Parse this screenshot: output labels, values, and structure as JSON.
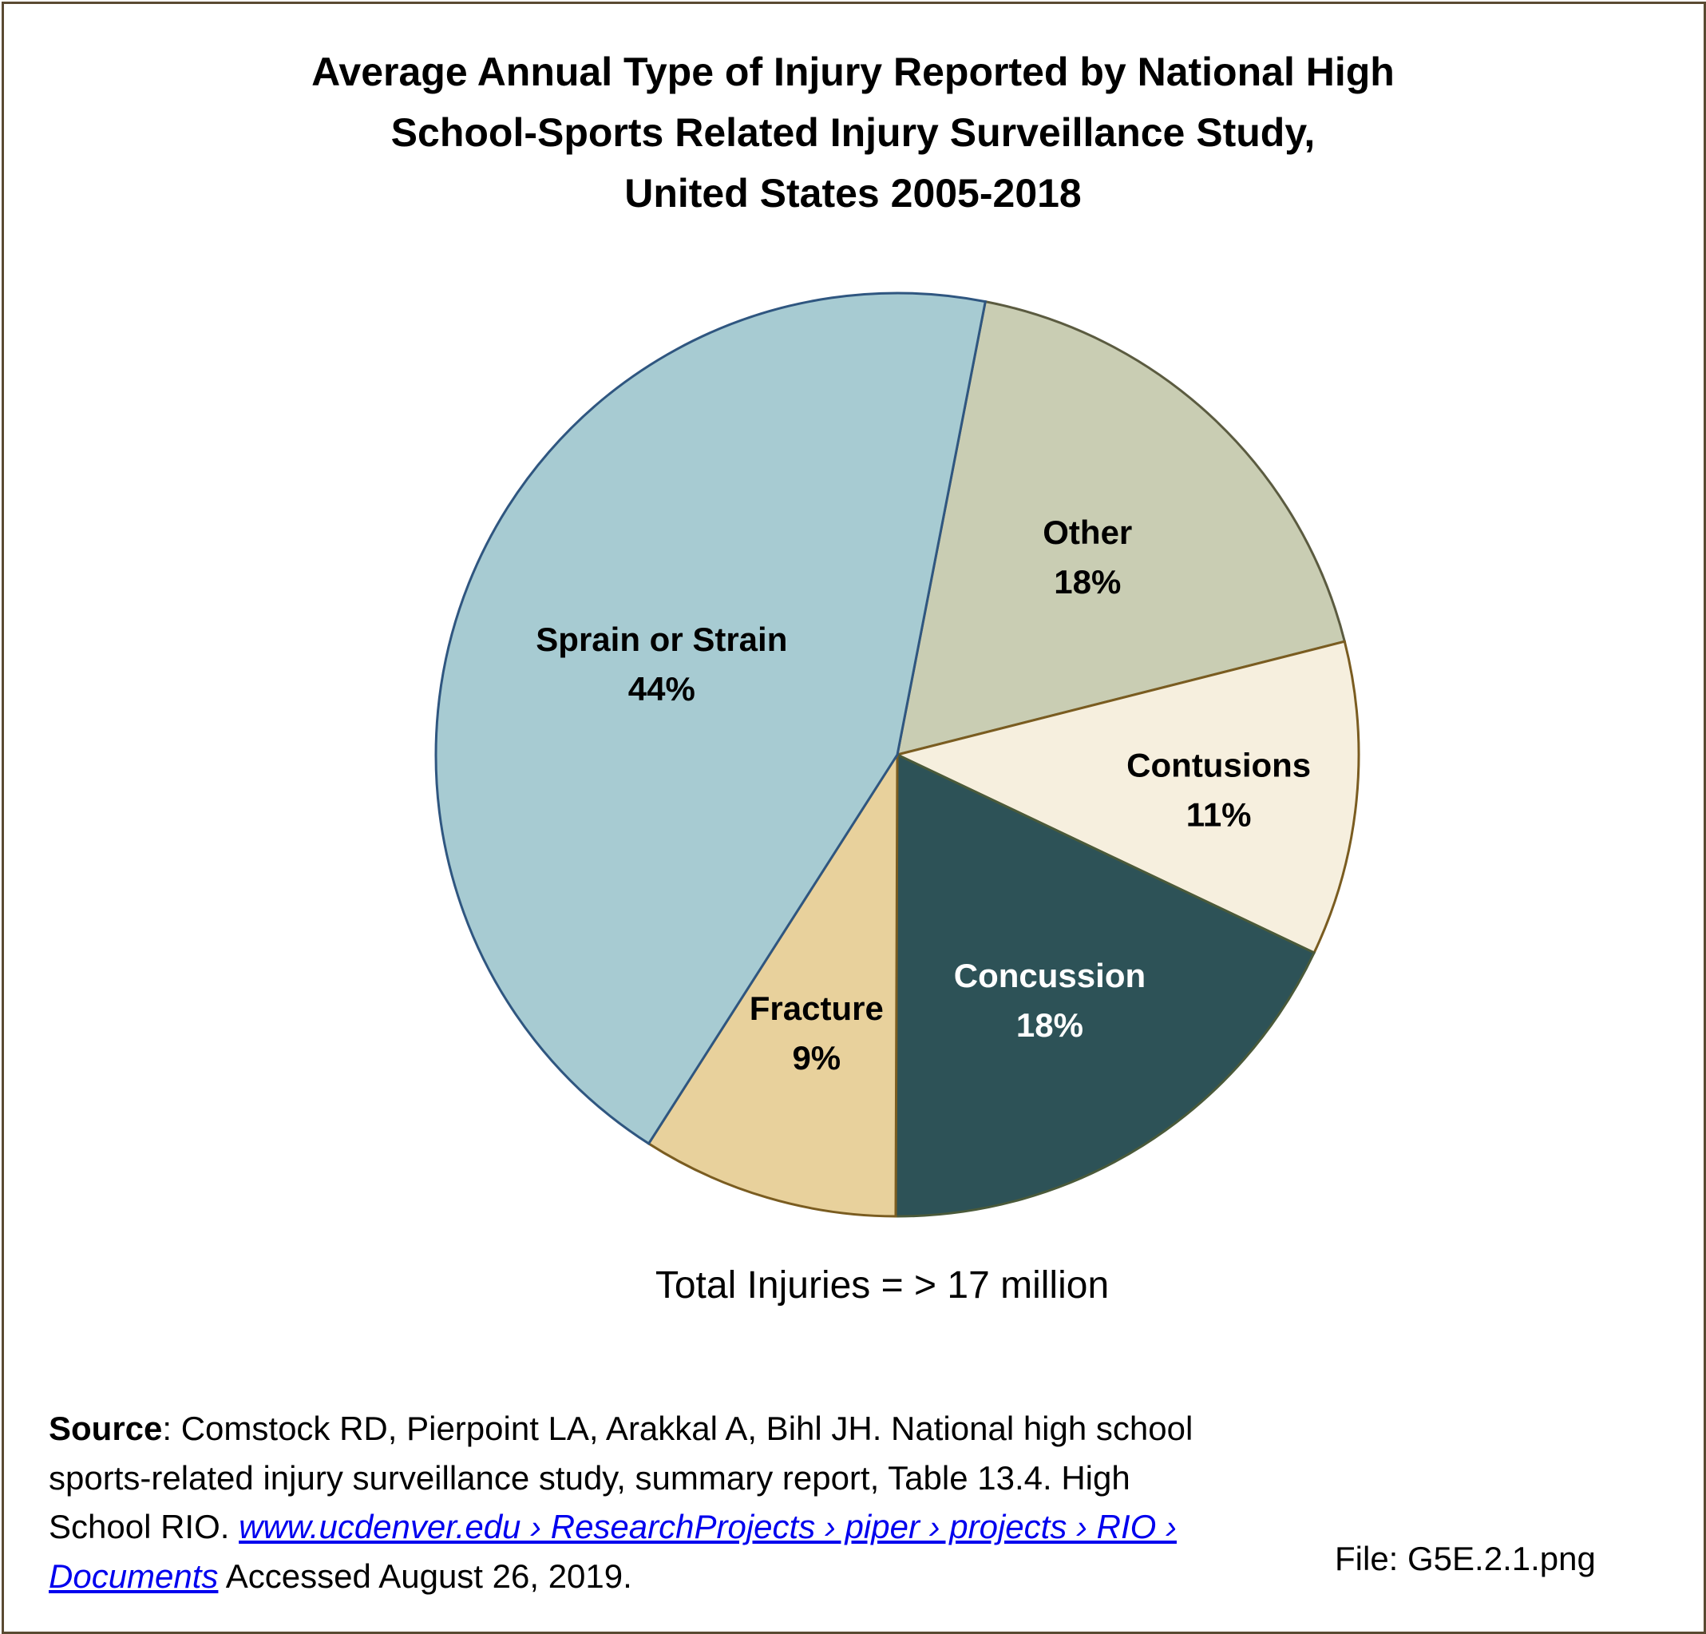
{
  "chart_data": {
    "type": "pie",
    "title_lines": [
      "Average Annual Type of Injury Reported by National High",
      "School-Sports Related Injury Surveillance Study,",
      "United States 2005-2018"
    ],
    "slices": [
      {
        "label": "Other",
        "value": 18,
        "value_label": "18%",
        "color": "#C9CDB3",
        "stroke": "#5b5b40",
        "text_color": "#000000"
      },
      {
        "label": "Contusions",
        "value": 11,
        "value_label": "11%",
        "color": "#F6EFDE",
        "stroke": "#7a5c20",
        "text_color": "#000000"
      },
      {
        "label": "Concussion",
        "value": 18,
        "value_label": "18%",
        "color": "#2D5257",
        "stroke": "#4a5a3a",
        "text_color": "#FFFFFF"
      },
      {
        "label": "Fracture",
        "value": 9,
        "value_label": "9%",
        "color": "#E8D19C",
        "stroke": "#7a5c20",
        "text_color": "#000000"
      },
      {
        "label": "Sprain or Strain",
        "value": 44,
        "value_label": "44%",
        "color": "#A7CBD2",
        "stroke": "#2f5680",
        "text_color": "#000000"
      }
    ],
    "start_angle_deg": 11
  },
  "total": "Total Injuries = > 17 million",
  "source": {
    "label": "Source",
    "text": ": Comstock RD, Pierpoint LA, Arakkal A, Bihl JH. National high school sports-related injury surveillance study, summary report, Table 13.4. High School RIO. ",
    "link": "www.ucdenver.edu › ResearchProjects › piper › projects › RIO › Documents",
    "accessed": " Accessed August 26, 2019."
  },
  "file": "File: G5E.2.1.png"
}
